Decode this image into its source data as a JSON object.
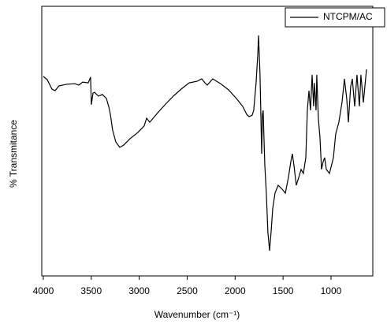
{
  "chart_data": {
    "type": "line",
    "xlabel": "Wavenumber (cm⁻¹)",
    "ylabel": "% Transmitance",
    "xlim": [
      4016,
      564
    ],
    "xticks": [
      4000,
      3500,
      3000,
      2500,
      2000,
      1500,
      1000
    ],
    "ylim": [
      0,
      100
    ],
    "legend": "top-right",
    "series": [
      {
        "name": "NTCPM/AC",
        "color": "#000000",
        "x": [
          4000,
          3959,
          3910,
          3877,
          3836,
          3753,
          3671,
          3630,
          3589,
          3532,
          3507,
          3499,
          3482,
          3466,
          3425,
          3384,
          3342,
          3318,
          3301,
          3277,
          3244,
          3203,
          3162,
          3096,
          3014,
          2948,
          2923,
          2890,
          2808,
          2726,
          2644,
          2562,
          2479,
          2397,
          2348,
          2315,
          2290,
          2233,
          2151,
          2068,
          1986,
          1921,
          1879,
          1855,
          1822,
          1806,
          1781,
          1764,
          1756,
          1740,
          1723,
          1715,
          1707,
          1699,
          1690,
          1674,
          1658,
          1641,
          1625,
          1608,
          1584,
          1551,
          1510,
          1476,
          1444,
          1419,
          1403,
          1386,
          1362,
          1337,
          1312,
          1288,
          1263,
          1247,
          1230,
          1214,
          1197,
          1181,
          1173,
          1156,
          1148,
          1132,
          1115,
          1099,
          1082,
          1066,
          1049,
          1016,
          975,
          951,
          918,
          885,
          860,
          836,
          819,
          795,
          778,
          753,
          729,
          704,
          688,
          663,
          647,
          630
        ],
        "values": [
          74.0,
          72.8,
          69.3,
          68.7,
          70.5,
          71.1,
          71.3,
          70.8,
          71.9,
          71.6,
          73.7,
          63.5,
          67.8,
          68.1,
          66.7,
          67.3,
          65.8,
          62.9,
          59.9,
          54.1,
          49.7,
          47.7,
          48.5,
          50.9,
          53.2,
          55.6,
          58.5,
          57.0,
          60.5,
          63.7,
          66.7,
          69.3,
          71.6,
          72.2,
          73.1,
          71.6,
          70.8,
          73.1,
          71.3,
          69.0,
          65.8,
          62.9,
          59.9,
          59.1,
          59.6,
          61.4,
          71.6,
          81.9,
          89.2,
          74.6,
          45.3,
          59.9,
          61.4,
          51.2,
          40.9,
          30.7,
          16.1,
          9.4,
          16.1,
          24.9,
          30.7,
          33.6,
          32.2,
          30.7,
          36.5,
          42.4,
          45.3,
          40.9,
          33.6,
          36.5,
          39.5,
          38.0,
          43.9,
          61.4,
          68.7,
          61.4,
          74.6,
          62.9,
          71.6,
          61.4,
          74.6,
          58.5,
          51.2,
          39.5,
          42.4,
          43.9,
          39.5,
          38.0,
          43.9,
          52.6,
          57.0,
          64.3,
          73.1,
          65.8,
          57.0,
          70.2,
          73.1,
          62.9,
          74.6,
          62.9,
          74.6,
          64.3,
          70.2,
          76.6
        ]
      }
    ]
  }
}
